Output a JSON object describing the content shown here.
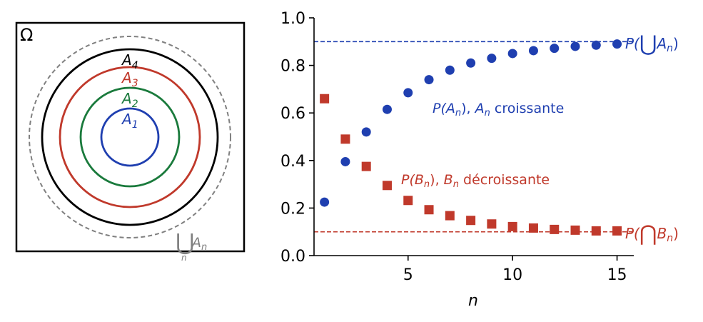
{
  "venn": {
    "omega_label": "Ω",
    "sets": [
      {
        "base": "A",
        "sub": "1",
        "color": "#1f3fb0"
      },
      {
        "base": "A",
        "sub": "2",
        "color": "#1a7a3c"
      },
      {
        "base": "A",
        "sub": "3",
        "color": "#c0392b"
      },
      {
        "base": "A",
        "sub": "4",
        "color": "#000000"
      }
    ],
    "union": {
      "symbol": "⋃",
      "base": "A",
      "sub": "n",
      "index": "n",
      "color": "#808080"
    }
  },
  "chart_data": {
    "type": "scatter",
    "xlabel": "n",
    "ylabel": "",
    "xlim": [
      0.5,
      15.8
    ],
    "ylim": [
      0,
      1.0
    ],
    "xticks": [
      5,
      10,
      15
    ],
    "yticks": [
      0.0,
      0.2,
      0.4,
      0.6,
      0.8,
      1.0
    ],
    "ytick_labels": [
      "0.0",
      "0.2",
      "0.4",
      "0.6",
      "0.8",
      "1.0"
    ],
    "xtick_labels": [
      "5",
      "10",
      "15"
    ],
    "grid": false,
    "series": [
      {
        "marker": "circle",
        "color": "#1f3fb0",
        "x": [
          1,
          2,
          3,
          4,
          5,
          6,
          7,
          8,
          9,
          10,
          11,
          12,
          13,
          14,
          15
        ],
        "y": [
          0.225,
          0.395,
          0.52,
          0.615,
          0.685,
          0.74,
          0.78,
          0.81,
          0.83,
          0.85,
          0.862,
          0.872,
          0.88,
          0.885,
          0.89
        ]
      },
      {
        "marker": "square",
        "color": "#c0392b",
        "x": [
          1,
          2,
          3,
          4,
          5,
          6,
          7,
          8,
          9,
          10,
          11,
          12,
          13,
          14,
          15
        ],
        "y": [
          0.66,
          0.49,
          0.375,
          0.295,
          0.232,
          0.193,
          0.168,
          0.148,
          0.133,
          0.122,
          0.116,
          0.11,
          0.107,
          0.104,
          0.104
        ]
      }
    ],
    "reference_lines": [
      {
        "y": 0.9,
        "color": "#1f3fb0",
        "style": "dashed"
      },
      {
        "y": 0.1,
        "color": "#c0392b",
        "style": "dashed"
      }
    ],
    "annotations": {
      "A_series": {
        "pre": "P(",
        "var": "A",
        "sub": "n",
        "mid": "), ",
        "var2": "A",
        "sub2": "n",
        "post": " croissante",
        "color": "#1f3fb0"
      },
      "B_series": {
        "pre": "P(",
        "var": "B",
        "sub": "n",
        "mid": "), ",
        "var2": "B",
        "sub2": "n",
        "post": " décroissante",
        "color": "#c0392b"
      },
      "A_limit": {
        "pre": "P(",
        "symbol": "⋃",
        "var": "A",
        "sub": "n",
        "post": ")",
        "color": "#1f3fb0"
      },
      "B_limit": {
        "pre": "P(",
        "symbol": "⋂",
        "var": "B",
        "sub": "n",
        "post": ")",
        "color": "#c0392b"
      }
    }
  }
}
